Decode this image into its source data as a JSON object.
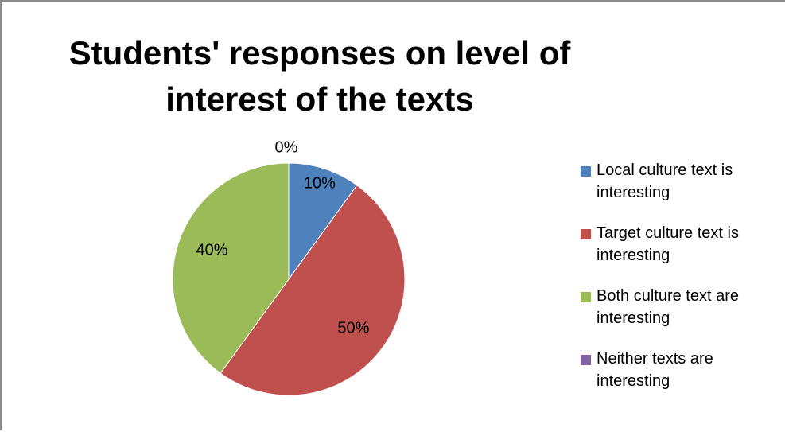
{
  "chart_data": {
    "type": "pie",
    "title": "Students' responses on level of interest of the texts",
    "title_lines": [
      "Students' responses on level of",
      "interest of the texts"
    ],
    "legend_position": "right",
    "slices": [
      {
        "name": "Local culture text is interesting",
        "legend_lines": [
          "Local culture text is",
          "interesting"
        ],
        "value": 10,
        "label": "10%",
        "color": "#4f81bd"
      },
      {
        "name": "Target culture text is interesting",
        "legend_lines": [
          "Target culture text is",
          "interesting"
        ],
        "value": 50,
        "label": "50%",
        "color": "#c0504d"
      },
      {
        "name": "Both culture text are interesting",
        "legend_lines": [
          "Both culture text are",
          "interesting"
        ],
        "value": 40,
        "label": "40%",
        "color": "#9bbb59"
      },
      {
        "name": "Neither texts are interesting",
        "legend_lines": [
          "Neither texts are",
          "interesting"
        ],
        "value": 0,
        "label": "0%",
        "color": "#8064a2"
      }
    ]
  }
}
